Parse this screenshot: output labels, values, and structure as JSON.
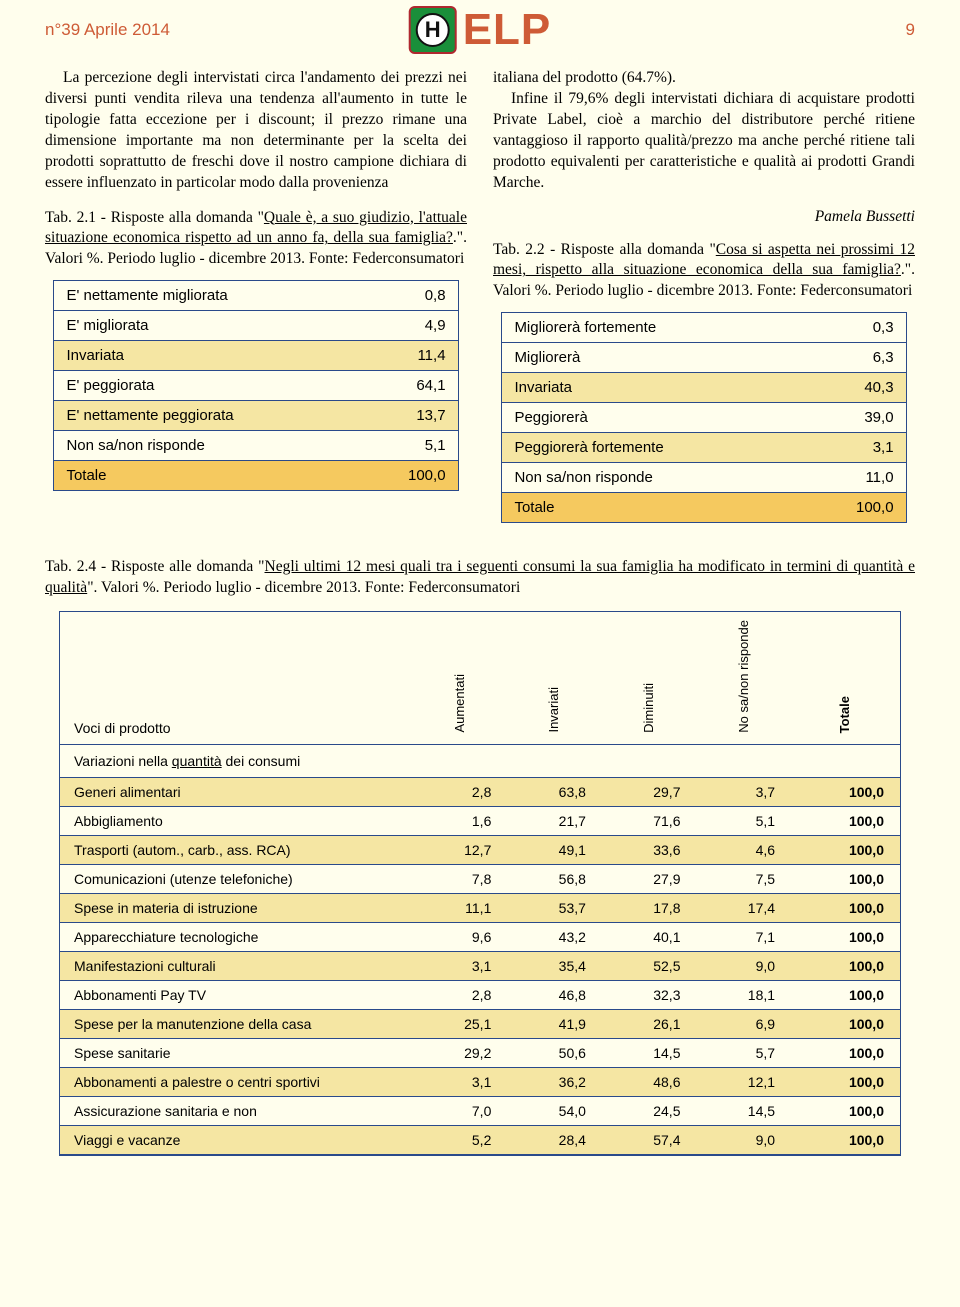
{
  "header": {
    "issue": "n°39 Aprile 2014",
    "logo_text": "ELP",
    "logo_letter": "H",
    "page_num": "9"
  },
  "colors": {
    "accent": "#ce5b36",
    "table_border": "#2a4a8a",
    "row_highlight": "#f5e6a3",
    "row_total": "#f5c95f",
    "page_bg": "#fffeed"
  },
  "leftPara": "La percezione degli intervistati circa l'andamento dei prezzi nei diversi punti vendita rileva una tendenza all'aumento in tutte le tipologie fatta eccezione per i discount; il prezzo rimane una dimensione importante ma non determinante per la scelta dei prodotti soprattutto de freschi dove il nostro campione dichiara di essere influenzato in particolar modo dalla provenienza",
  "rightPara1": "italiana del prodotto (64.7%).",
  "rightPara2": "Infine il 79,6% degli intervistati dichiara di acquistare prodotti Private Label, cioè a marchio del distributore perché ritiene vantaggioso il rapporto qualità/prezzo ma anche perché ritiene tali prodotto equivalenti per caratteristiche e qualità ai prodotti Grandi Marche.",
  "author": "Pamela Bussetti",
  "tab21": {
    "caption_pre": "Tab. 2.1 - Risposte alla domanda \"",
    "caption_q": "Quale è, a suo giudizio, l'attuale situazione economica rispetto ad un anno fa, della sua famiglia?",
    "caption_post": ".\". Valori %. Periodo luglio - dicembre 2013. Fonte: Federconsumatori",
    "rows": [
      {
        "label": "E' nettamente migliorata",
        "val": "0,8",
        "hl": false
      },
      {
        "label": "E' migliorata",
        "val": "4,9",
        "hl": false
      },
      {
        "label": "Invariata",
        "val": "11,4",
        "hl": true
      },
      {
        "label": "E' peggiorata",
        "val": "64,1",
        "hl": false
      },
      {
        "label": "E' nettamente peggiorata",
        "val": "13,7",
        "hl": true
      },
      {
        "label": "Non sa/non risponde",
        "val": "5,1",
        "hl": false
      }
    ],
    "total_label": "Totale",
    "total_val": "100,0"
  },
  "tab22": {
    "caption_pre": "Tab. 2.2 - Risposte alla domanda \"",
    "caption_q": "Cosa si aspetta nei prossimi 12 mesi, rispetto alla situazione economica della sua famiglia?",
    "caption_post": ".\". Valori %. Periodo luglio - dicembre 2013. Fonte: Federconsumatori",
    "rows": [
      {
        "label": "Migliorerà fortemente",
        "val": "0,3",
        "hl": false
      },
      {
        "label": "Migliorerà",
        "val": "6,3",
        "hl": false
      },
      {
        "label": "Invariata",
        "val": "40,3",
        "hl": true
      },
      {
        "label": "Peggiorerà",
        "val": "39,0",
        "hl": false
      },
      {
        "label": "Peggiorerà fortemente",
        "val": "3,1",
        "hl": true
      },
      {
        "label": "Non sa/non risponde",
        "val": "11,0",
        "hl": false
      }
    ],
    "total_label": "Totale",
    "total_val": "100,0"
  },
  "tab24": {
    "caption_pre": "Tab. 2.4 - Risposte alle domanda \"",
    "caption_q": "Negli ultimi 12 mesi quali tra i seguenti consumi la sua famiglia ha modificato in termini di quantità e qualità",
    "caption_post": "\". Valori %. Periodo luglio - dicembre 2013. Fonte: Federconsumatori",
    "col0": "Voci di prodotto",
    "col1": "Aumentati",
    "col2": "Invariati",
    "col3": "Diminuiti",
    "col4": "No sa/non risponde",
    "col5": "Totale",
    "subheader_pre": "Variazioni nella ",
    "subheader_u": "quantità",
    "subheader_post": " dei consumi",
    "rows": [
      {
        "label": "Generi alimentari",
        "v": [
          "2,8",
          "63,8",
          "29,7",
          "3,7",
          "100,0"
        ],
        "hl": true
      },
      {
        "label": "Abbigliamento",
        "v": [
          "1,6",
          "21,7",
          "71,6",
          "5,1",
          "100,0"
        ],
        "hl": false
      },
      {
        "label": "Trasporti (autom., carb., ass. RCA)",
        "v": [
          "12,7",
          "49,1",
          "33,6",
          "4,6",
          "100,0"
        ],
        "hl": true
      },
      {
        "label": "Comunicazioni (utenze telefoniche)",
        "v": [
          "7,8",
          "56,8",
          "27,9",
          "7,5",
          "100,0"
        ],
        "hl": false
      },
      {
        "label": "Spese in materia di istruzione",
        "v": [
          "11,1",
          "53,7",
          "17,8",
          "17,4",
          "100,0"
        ],
        "hl": true
      },
      {
        "label": "Apparecchiature tecnologiche",
        "v": [
          "9,6",
          "43,2",
          "40,1",
          "7,1",
          "100,0"
        ],
        "hl": false
      },
      {
        "label": "Manifestazioni culturali",
        "v": [
          "3,1",
          "35,4",
          "52,5",
          "9,0",
          "100,0"
        ],
        "hl": true
      },
      {
        "label": "Abbonamenti Pay TV",
        "v": [
          "2,8",
          "46,8",
          "32,3",
          "18,1",
          "100,0"
        ],
        "hl": false
      },
      {
        "label": "Spese per la manutenzione della casa",
        "v": [
          "25,1",
          "41,9",
          "26,1",
          "6,9",
          "100,0"
        ],
        "hl": true
      },
      {
        "label": "Spese sanitarie",
        "v": [
          "29,2",
          "50,6",
          "14,5",
          "5,7",
          "100,0"
        ],
        "hl": false
      },
      {
        "label": "Abbonamenti a palestre o centri sportivi",
        "v": [
          "3,1",
          "36,2",
          "48,6",
          "12,1",
          "100,0"
        ],
        "hl": true
      },
      {
        "label": "Assicurazione sanitaria e non",
        "v": [
          "7,0",
          "54,0",
          "24,5",
          "14,5",
          "100,0"
        ],
        "hl": false
      },
      {
        "label": "Viaggi e vacanze",
        "v": [
          "5,2",
          "28,4",
          "57,4",
          "9,0",
          "100,0"
        ],
        "hl": true
      }
    ]
  }
}
